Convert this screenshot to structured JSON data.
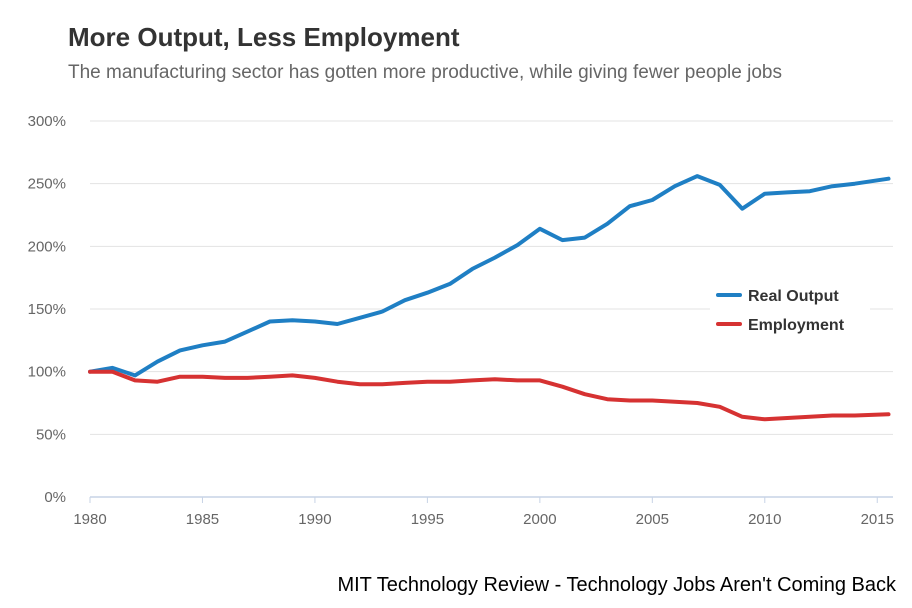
{
  "source_credit": "MIT Technology Review - Technology Jobs Aren't Coming Back",
  "chart_data": {
    "type": "line",
    "title": "More Output, Less Employment",
    "subtitle": "The manufacturing sector has gotten more productive, while giving fewer people jobs",
    "xlabel": "",
    "ylabel": "",
    "xlim": [
      1980,
      2015.7
    ],
    "ylim": [
      0,
      300
    ],
    "x_ticks": [
      1980,
      1985,
      1990,
      1995,
      2000,
      2005,
      2010,
      2015
    ],
    "y_ticks": [
      0,
      50,
      100,
      150,
      200,
      250,
      300
    ],
    "y_tick_labels": [
      "0%",
      "50%",
      "100%",
      "150%",
      "200%",
      "250%",
      "300%"
    ],
    "grid": "horizontal",
    "legend_position": "center-right",
    "x": [
      1980,
      1981,
      1982,
      1983,
      1984,
      1985,
      1986,
      1987,
      1988,
      1989,
      1990,
      1991,
      1992,
      1993,
      1994,
      1995,
      1996,
      1997,
      1998,
      1999,
      2000,
      2001,
      2002,
      2003,
      2004,
      2005,
      2006,
      2007,
      2008,
      2009,
      2010,
      2011,
      2012,
      2013,
      2014,
      2015.5
    ],
    "series": [
      {
        "name": "Real Output",
        "color": "#1f7fc4",
        "values": [
          100,
          103,
          97,
          108,
          117,
          121,
          124,
          132,
          140,
          141,
          140,
          138,
          143,
          148,
          157,
          163,
          170,
          182,
          191,
          201,
          214,
          205,
          207,
          218,
          232,
          237,
          248,
          256,
          249,
          230,
          242,
          243,
          244,
          248,
          250,
          254
        ]
      },
      {
        "name": "Employment",
        "color": "#d63232",
        "values": [
          100,
          100,
          93,
          92,
          96,
          96,
          95,
          95,
          96,
          97,
          95,
          92,
          90,
          90,
          91,
          92,
          92,
          93,
          94,
          93,
          93,
          88,
          82,
          78,
          77,
          77,
          76,
          75,
          72,
          64,
          62,
          63,
          64,
          65,
          65,
          66
        ]
      }
    ]
  }
}
